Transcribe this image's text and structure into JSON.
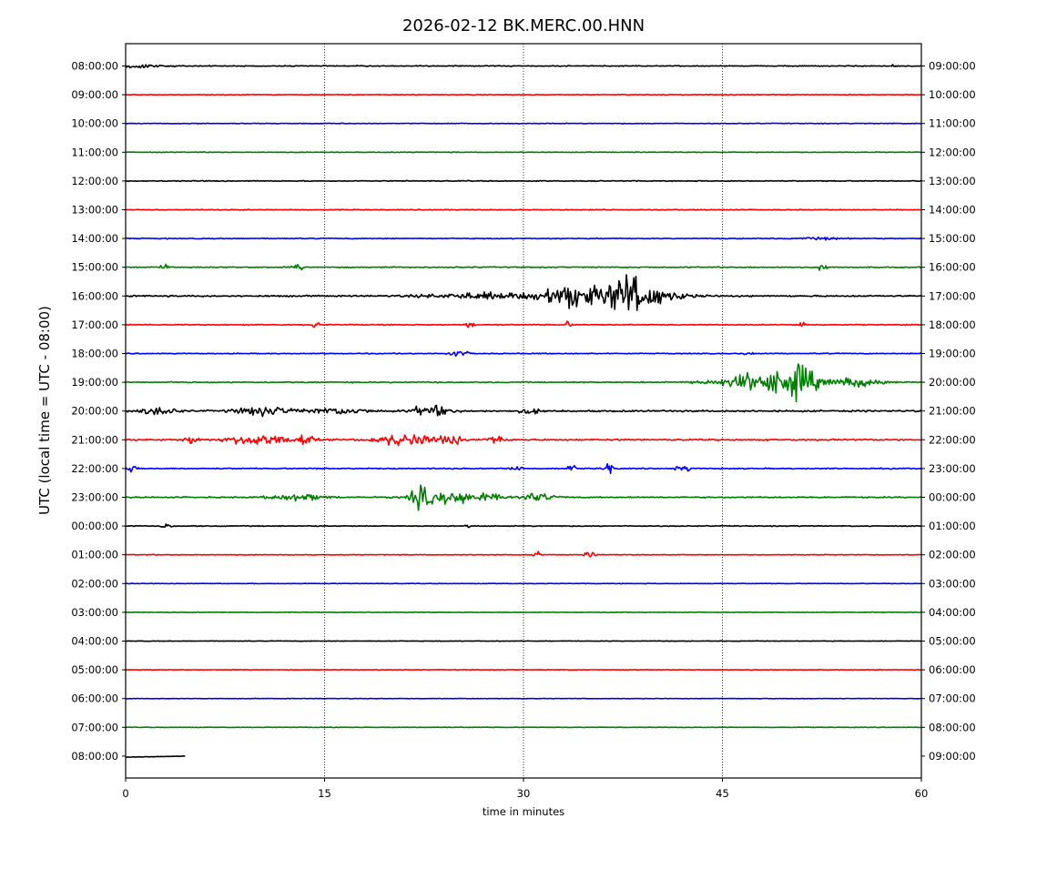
{
  "chart_data": {
    "type": "line",
    "title": "2026-02-12 BK.MERC.00.HNN",
    "xlabel": "time in minutes",
    "ylabel": "UTC (local time = UTC - 08:00)",
    "xlim": [
      0,
      60
    ],
    "x_ticks": [
      "0",
      "15",
      "30",
      "45",
      "60"
    ],
    "x_tick_values": [
      0,
      15,
      30,
      45,
      60
    ],
    "grid": "vertical dotted lines at 15, 30, 45",
    "color_cycle": [
      "#000000",
      "#ff0000",
      "#0000ff",
      "#008000"
    ],
    "left_labels": [
      "08:00:00",
      "09:00:00",
      "10:00:00",
      "11:00:00",
      "12:00:00",
      "13:00:00",
      "14:00:00",
      "15:00:00",
      "16:00:00",
      "17:00:00",
      "18:00:00",
      "19:00:00",
      "20:00:00",
      "21:00:00",
      "22:00:00",
      "23:00:00",
      "00:00:00",
      "01:00:00",
      "02:00:00",
      "03:00:00",
      "04:00:00",
      "05:00:00",
      "06:00:00",
      "07:00:00",
      "08:00:00"
    ],
    "right_labels": [
      "09:00:00",
      "10:00:00",
      "11:00:00",
      "12:00:00",
      "13:00:00",
      "14:00:00",
      "15:00:00",
      "16:00:00",
      "17:00:00",
      "18:00:00",
      "19:00:00",
      "20:00:00",
      "21:00:00",
      "22:00:00",
      "23:00:00",
      "00:00:00",
      "01:00:00",
      "02:00:00",
      "03:00:00",
      "04:00:00",
      "05:00:00",
      "06:00:00",
      "07:00:00",
      "08:00:00",
      "09:00:00"
    ],
    "trace_end_minutes": [
      60,
      60,
      60,
      60,
      60,
      60,
      60,
      60,
      60,
      60,
      60,
      60,
      60,
      60,
      60,
      60,
      60,
      60,
      60,
      60,
      60,
      60,
      60,
      60,
      4.5
    ],
    "noise_level": [
      0.05,
      0.04,
      0.04,
      0.04,
      0.05,
      0.04,
      0.05,
      0.06,
      0.08,
      0.05,
      0.05,
      0.06,
      0.09,
      0.08,
      0.06,
      0.07,
      0.05,
      0.04,
      0.03,
      0.03,
      0.03,
      0.03,
      0.03,
      0.03,
      0.03
    ],
    "events": [
      {
        "row": 0,
        "minute": 1.0,
        "amp": 0.15,
        "dur": 3.0
      },
      {
        "row": 0,
        "minute": 57.9,
        "amp": 0.25,
        "dur": 0.3
      },
      {
        "row": 6,
        "minute": 52.5,
        "amp": 0.12,
        "dur": 2.0
      },
      {
        "row": 7,
        "minute": 3.0,
        "amp": 0.25,
        "dur": 0.6
      },
      {
        "row": 7,
        "minute": 13.0,
        "amp": 0.3,
        "dur": 0.6
      },
      {
        "row": 7,
        "minute": 52.5,
        "amp": 0.3,
        "dur": 0.6
      },
      {
        "row": 8,
        "minute": 27.0,
        "amp": 0.35,
        "dur": 6.0
      },
      {
        "row": 8,
        "minute": 33.4,
        "amp": 1.3,
        "dur": 3.0
      },
      {
        "row": 8,
        "minute": 37.9,
        "amp": 2.2,
        "dur": 3.0
      },
      {
        "row": 8,
        "minute": 41.0,
        "amp": 0.3,
        "dur": 3.0
      },
      {
        "row": 9,
        "minute": 14.2,
        "amp": 0.3,
        "dur": 0.6
      },
      {
        "row": 9,
        "minute": 26.0,
        "amp": 0.3,
        "dur": 0.5
      },
      {
        "row": 9,
        "minute": 33.4,
        "amp": 0.45,
        "dur": 0.3
      },
      {
        "row": 9,
        "minute": 51.0,
        "amp": 0.3,
        "dur": 0.6
      },
      {
        "row": 10,
        "minute": 25.0,
        "amp": 0.3,
        "dur": 1.2
      },
      {
        "row": 10,
        "minute": 47.0,
        "amp": 0.3,
        "dur": 0.6
      },
      {
        "row": 11,
        "minute": 45.5,
        "amp": 0.25,
        "dur": 4.0
      },
      {
        "row": 11,
        "minute": 48.0,
        "amp": 1.0,
        "dur": 3.0
      },
      {
        "row": 11,
        "minute": 50.8,
        "amp": 1.7,
        "dur": 2.0
      },
      {
        "row": 11,
        "minute": 55.0,
        "amp": 0.5,
        "dur": 3.0
      },
      {
        "row": 12,
        "minute": 2.5,
        "amp": 0.4,
        "dur": 2.0
      },
      {
        "row": 12,
        "minute": 10.5,
        "amp": 0.5,
        "dur": 3.0
      },
      {
        "row": 12,
        "minute": 16.0,
        "amp": 0.35,
        "dur": 3.0
      },
      {
        "row": 12,
        "minute": 23.0,
        "amp": 0.6,
        "dur": 2.0
      },
      {
        "row": 12,
        "minute": 30.5,
        "amp": 0.3,
        "dur": 1.0
      },
      {
        "row": 13,
        "minute": 5.0,
        "amp": 0.45,
        "dur": 0.8
      },
      {
        "row": 13,
        "minute": 10.0,
        "amp": 0.65,
        "dur": 3.0
      },
      {
        "row": 13,
        "minute": 13.5,
        "amp": 0.6,
        "dur": 1.0
      },
      {
        "row": 13,
        "minute": 21.0,
        "amp": 0.7,
        "dur": 3.0
      },
      {
        "row": 13,
        "minute": 24.5,
        "amp": 0.45,
        "dur": 1.5
      },
      {
        "row": 13,
        "minute": 27.8,
        "amp": 0.45,
        "dur": 1.0
      },
      {
        "row": 14,
        "minute": 0.3,
        "amp": 0.35,
        "dur": 0.8
      },
      {
        "row": 14,
        "minute": 29.5,
        "amp": 0.5,
        "dur": 0.5
      },
      {
        "row": 14,
        "minute": 33.6,
        "amp": 0.45,
        "dur": 0.5
      },
      {
        "row": 14,
        "minute": 36.5,
        "amp": 0.7,
        "dur": 0.5
      },
      {
        "row": 14,
        "minute": 42.0,
        "amp": 0.4,
        "dur": 0.8
      },
      {
        "row": 15,
        "minute": 13.0,
        "amp": 0.35,
        "dur": 3.0
      },
      {
        "row": 15,
        "minute": 22.2,
        "amp": 1.0,
        "dur": 1.0
      },
      {
        "row": 15,
        "minute": 25.0,
        "amp": 0.75,
        "dur": 4.0
      },
      {
        "row": 15,
        "minute": 31.0,
        "amp": 0.4,
        "dur": 2.0
      },
      {
        "row": 16,
        "minute": 3.0,
        "amp": 0.3,
        "dur": 0.5
      },
      {
        "row": 16,
        "minute": 26.0,
        "amp": 0.3,
        "dur": 0.4
      },
      {
        "row": 17,
        "minute": 31.0,
        "amp": 0.3,
        "dur": 0.4
      },
      {
        "row": 17,
        "minute": 35.0,
        "amp": 0.3,
        "dur": 0.6
      }
    ]
  }
}
